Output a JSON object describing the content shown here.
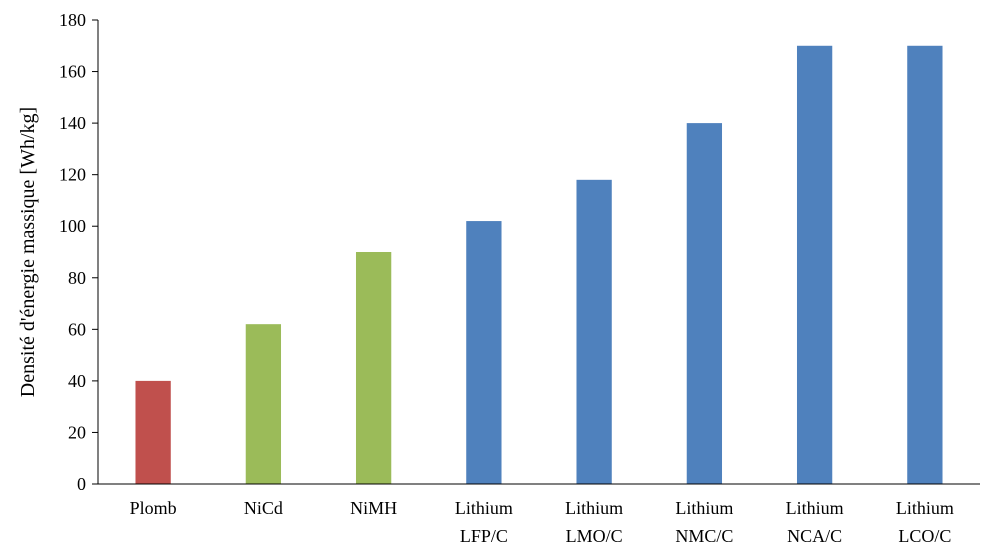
{
  "chart_data": {
    "type": "bar",
    "title": "",
    "xlabel": "",
    "ylabel": "Densité d'énergie massique [Wh/kg]",
    "ylim": [
      0,
      180
    ],
    "yticks": [
      0,
      20,
      40,
      60,
      80,
      100,
      120,
      140,
      160,
      180
    ],
    "grid": false,
    "legend": "none",
    "categories": [
      [
        "Plomb"
      ],
      [
        "NiCd"
      ],
      [
        "NiMH"
      ],
      [
        "Lithium",
        "LFP/C"
      ],
      [
        "Lithium",
        "LMO/C"
      ],
      [
        "Lithium",
        "NMC/C"
      ],
      [
        "Lithium",
        "NCA/C"
      ],
      [
        "Lithium",
        "LCO/C"
      ]
    ],
    "values": [
      40,
      62,
      90,
      102,
      118,
      140,
      170,
      170
    ],
    "colors": [
      "#c0504d",
      "#9bbb59",
      "#9bbb59",
      "#4f81bd",
      "#4f81bd",
      "#4f81bd",
      "#4f81bd",
      "#4f81bd"
    ]
  }
}
